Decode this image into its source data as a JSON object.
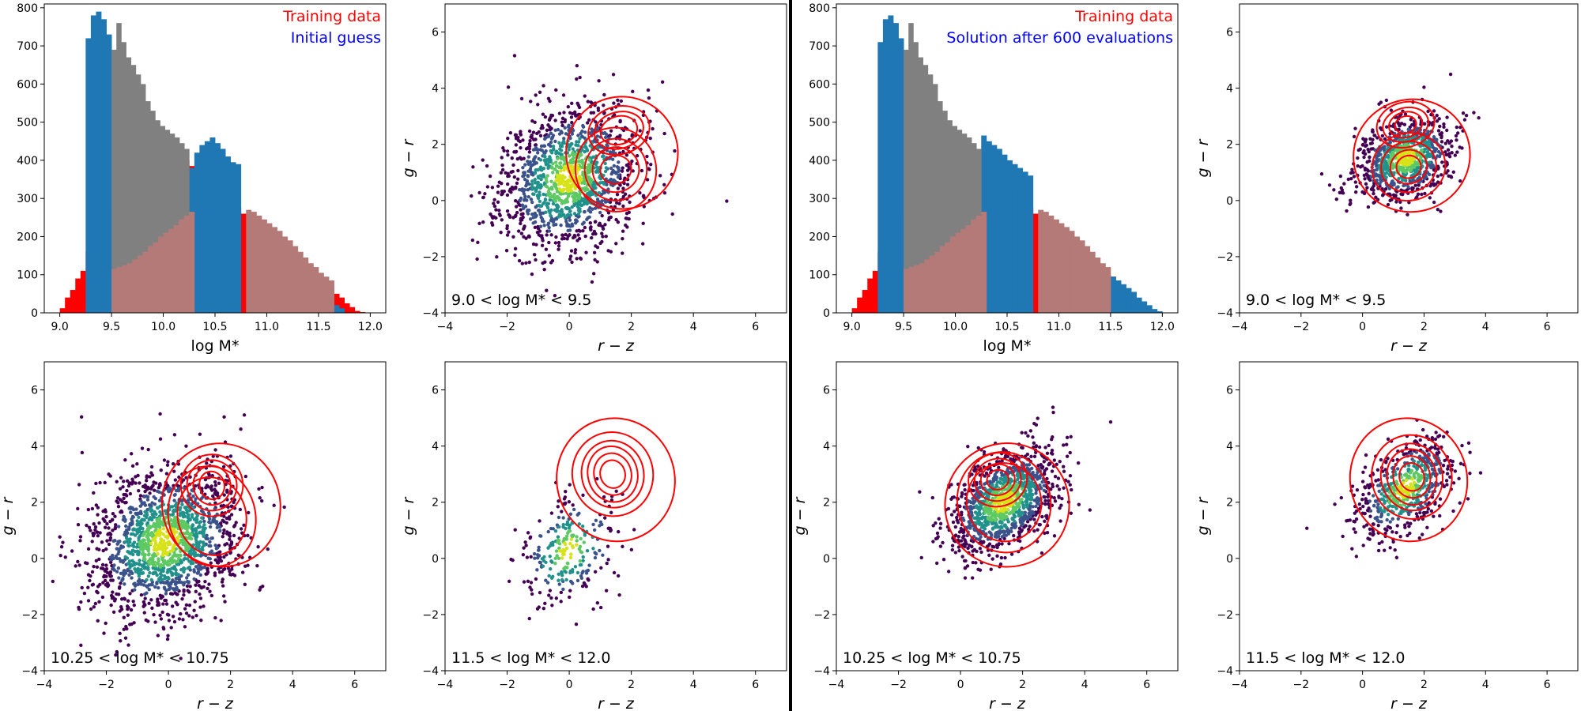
{
  "colors": {
    "training": "#ff0000",
    "initial": "#0000ff",
    "hist_blue": "#1f77b4",
    "hist_gray": "#808080",
    "hist_brown": "#b47a78",
    "viridis_dark": "#440154",
    "viridis_teal": "#21918c",
    "viridis_yellow": "#d8e219"
  },
  "chart_data": [
    {
      "id": "hist-left",
      "type": "bar",
      "xlabel": "log M*",
      "legend": [
        "Training data",
        "Initial guess"
      ],
      "legend_colors": [
        "#ff0000",
        "#0000ff"
      ],
      "legend_placement": "top-right",
      "xlim": [
        8.85,
        12.15
      ],
      "ylim": [
        0,
        810
      ],
      "xticks": [
        "9.0",
        "9.5",
        "10.0",
        "10.5",
        "11.0",
        "11.5",
        "12.0"
      ],
      "yticks": [
        "0",
        "100",
        "200",
        "300",
        "400",
        "500",
        "600",
        "700",
        "800"
      ],
      "gray_bins": {
        "start": 9.5,
        "end": 10.25,
        "values": [
          690,
          760,
          710,
          670,
          650,
          625,
          600,
          555,
          530,
          505,
          490,
          480,
          470,
          460,
          445,
          430
        ]
      },
      "red_bins": {
        "start": 9.0,
        "end": 12.0,
        "values": [
          12,
          40,
          60,
          90,
          110,
          160,
          190,
          230,
          250,
          265,
          275,
          290,
          310,
          300,
          320,
          360,
          380,
          395,
          405,
          400,
          390,
          410,
          430,
          420,
          400,
          385,
          370,
          360,
          355,
          340,
          330,
          320,
          300,
          290,
          275,
          260,
          240,
          230,
          220,
          210,
          195,
          185,
          170,
          160,
          155,
          150,
          135,
          130,
          110,
          100,
          95,
          80,
          65,
          50,
          40,
          25,
          15,
          5,
          2,
          1
        ]
      },
      "blue_bins": [
        {
          "start": 9.25,
          "end": 9.5,
          "values": [
            720,
            780,
            790,
            770,
            730
          ]
        },
        {
          "start": 10.25,
          "end": 10.75,
          "values": [
            380,
            420,
            440,
            450,
            460,
            445,
            430,
            410,
            395,
            390
          ]
        },
        {
          "start": 11.5,
          "end": 11.75,
          "values": [
            40,
            35,
            30,
            20,
            12
          ]
        }
      ],
      "brown_bins": {
        "start": 9.5,
        "end": 12.0,
        "values": [
          115,
          120,
          125,
          130,
          140,
          150,
          160,
          175,
          185,
          200,
          210,
          220,
          230,
          245,
          255,
          265,
          0,
          0,
          0,
          0,
          0,
          0,
          0,
          0,
          0,
          0,
          270,
          265,
          255,
          245,
          235,
          225,
          215,
          200,
          190,
          175,
          160,
          145,
          130,
          120,
          105,
          95,
          85,
          0,
          0,
          0,
          0,
          0,
          0,
          0
        ]
      }
    },
    {
      "id": "hist-right",
      "type": "bar",
      "xlabel": "log M*",
      "legend": [
        "Training data",
        "Solution after 600 evaluations"
      ],
      "legend_colors": [
        "#ff0000",
        "#0000ff"
      ],
      "legend_placement": "top-right",
      "xlim": [
        8.85,
        12.15
      ],
      "ylim": [
        0,
        810
      ],
      "xticks": [
        "9.0",
        "9.5",
        "10.0",
        "10.5",
        "11.0",
        "11.5",
        "12.0"
      ],
      "yticks": [
        "0",
        "100",
        "200",
        "300",
        "400",
        "500",
        "600",
        "700",
        "800"
      ],
      "gray_bins": {
        "start": 9.5,
        "end": 10.25,
        "values": [
          690,
          760,
          710,
          670,
          650,
          625,
          600,
          555,
          530,
          505,
          490,
          480,
          470,
          460,
          445,
          430
        ]
      },
      "red_bins": {
        "start": 9.0,
        "end": 12.0,
        "values": [
          12,
          40,
          60,
          90,
          110,
          160,
          190,
          230,
          250,
          265,
          275,
          290,
          310,
          300,
          320,
          360,
          380,
          395,
          405,
          400,
          390,
          410,
          430,
          420,
          400,
          385,
          370,
          360,
          355,
          340,
          330,
          320,
          300,
          290,
          275,
          260,
          240,
          230,
          220,
          210,
          195,
          185,
          170,
          160,
          155,
          150,
          135,
          130,
          110,
          100,
          95,
          80,
          65,
          50,
          40,
          25,
          15,
          5,
          2,
          1
        ]
      },
      "blue_bins": [
        {
          "start": 9.25,
          "end": 9.5,
          "values": [
            710,
            770,
            780,
            760,
            720
          ]
        },
        {
          "start": 10.25,
          "end": 10.75,
          "values": [
            465,
            450,
            440,
            430,
            415,
            400,
            390,
            380,
            370,
            360
          ]
        },
        {
          "start": 11.5,
          "end": 12.0,
          "values": [
            95,
            85,
            75,
            65,
            55,
            40,
            30,
            20,
            10,
            4
          ]
        }
      ],
      "brown_bins": {
        "start": 9.5,
        "end": 12.0,
        "values": [
          115,
          120,
          125,
          130,
          140,
          150,
          160,
          175,
          185,
          200,
          210,
          220,
          230,
          245,
          255,
          265,
          0,
          0,
          0,
          0,
          0,
          0,
          0,
          0,
          0,
          0,
          270,
          265,
          255,
          245,
          235,
          225,
          215,
          200,
          190,
          175,
          160,
          145,
          130,
          120,
          0,
          0,
          0,
          0,
          0,
          0,
          0,
          0,
          0,
          0
        ]
      }
    },
    {
      "id": "sc-l1",
      "type": "scatter",
      "annotation": "9.0 < log M* < 9.5",
      "xlabel": "r − z",
      "ylabel": "g − r",
      "xlim": [
        -4,
        7
      ],
      "ylim": [
        -4,
        7
      ],
      "xticks": [
        "−4",
        "−2",
        "0",
        "2",
        "4",
        "6"
      ],
      "yticks": [
        "−4",
        "−2",
        "0",
        "2",
        "4",
        "6"
      ],
      "cloud": {
        "cx": 0.0,
        "cy": 0.8,
        "sx": 1.1,
        "sy": 1.3,
        "rho": 0.2,
        "n": 1400,
        "seed": 11
      },
      "contours": [
        {
          "cx": 1.6,
          "cy": 2.5,
          "rx": [
            0.6,
            0.8,
            1.0
          ],
          "ry": [
            0.5,
            0.65,
            0.85
          ]
        },
        {
          "cx": 1.5,
          "cy": 1.1,
          "rx": [
            0.5,
            0.75,
            1.0,
            1.3
          ],
          "ry": [
            0.5,
            0.8,
            1.1,
            1.5
          ]
        },
        {
          "cx": 1.7,
          "cy": 1.7,
          "rx": [
            1.8
          ],
          "ry": [
            2.0
          ]
        }
      ]
    },
    {
      "id": "sc-r1",
      "type": "scatter",
      "annotation": "9.0 < log M* < 9.5",
      "xlabel": "r − z",
      "ylabel": "g − r",
      "xlim": [
        -4,
        7
      ],
      "ylim": [
        -4,
        7
      ],
      "xticks": [
        "−4",
        "−2",
        "0",
        "2",
        "4",
        "6"
      ],
      "yticks": [
        "−4",
        "−2",
        "0",
        "2",
        "4",
        "6"
      ],
      "cloud": {
        "cx": 1.4,
        "cy": 1.5,
        "sx": 0.8,
        "sy": 0.75,
        "rho": 0.3,
        "n": 900,
        "seed": 21
      },
      "contours": [
        {
          "cx": 1.4,
          "cy": 2.7,
          "rx": [
            0.35,
            0.55,
            0.75,
            0.95
          ],
          "ry": [
            0.3,
            0.45,
            0.6,
            0.8
          ]
        },
        {
          "cx": 1.5,
          "cy": 1.2,
          "rx": [
            0.4,
            0.6,
            0.9,
            1.2
          ],
          "ry": [
            0.4,
            0.6,
            0.9,
            1.2
          ]
        },
        {
          "cx": 1.6,
          "cy": 1.6,
          "rx": [
            1.9
          ],
          "ry": [
            2.0
          ]
        }
      ]
    },
    {
      "id": "sc-l2",
      "type": "scatter",
      "annotation": "10.25 < log M* < 10.75",
      "xlabel": "r − z",
      "ylabel": "g − r",
      "xlim": [
        -4,
        7
      ],
      "ylim": [
        -4,
        7
      ],
      "xticks": [
        "−4",
        "−2",
        "0",
        "2",
        "4",
        "6"
      ],
      "yticks": [
        "−4",
        "−2",
        "0",
        "2",
        "4",
        "6"
      ],
      "cloud": {
        "cx": -0.1,
        "cy": 0.6,
        "sx": 1.2,
        "sy": 1.3,
        "rho": 0.2,
        "n": 1600,
        "seed": 31
      },
      "contours": [
        {
          "cx": 1.4,
          "cy": 2.6,
          "rx": [
            0.4,
            0.6,
            0.8,
            1.0
          ],
          "ry": [
            0.5,
            0.7,
            0.9,
            1.1
          ]
        },
        {
          "cx": 1.4,
          "cy": 1.5,
          "rx": [
            1.1,
            1.4
          ],
          "ry": [
            1.4,
            1.8
          ]
        },
        {
          "cx": 1.7,
          "cy": 1.9,
          "rx": [
            1.9
          ],
          "ry": [
            2.2
          ]
        }
      ]
    },
    {
      "id": "sc-l3",
      "type": "scatter",
      "annotation": "11.5 < log M* < 12.0",
      "xlabel": "r − z",
      "ylabel": "g − r",
      "xlim": [
        -4,
        7
      ],
      "ylim": [
        -4,
        7
      ],
      "xticks": [
        "−4",
        "−2",
        "0",
        "2",
        "4",
        "6"
      ],
      "yticks": [
        "−4",
        "−2",
        "0",
        "2",
        "4",
        "6"
      ],
      "cloud": {
        "cx": 0.0,
        "cy": 0.3,
        "sx": 0.8,
        "sy": 1.0,
        "rho": 0.3,
        "n": 260,
        "seed": 41
      },
      "contours": [
        {
          "cx": 1.4,
          "cy": 3.0,
          "rx": [
            0.4,
            0.6,
            0.8,
            1.0,
            1.3
          ],
          "ry": [
            0.5,
            0.75,
            1.0,
            1.2,
            1.5
          ]
        },
        {
          "cx": 1.5,
          "cy": 2.8,
          "rx": [
            1.9
          ],
          "ry": [
            2.2
          ]
        }
      ]
    },
    {
      "id": "sc-r2",
      "type": "scatter",
      "annotation": "10.25 < log M* < 10.75",
      "xlabel": "r − z",
      "ylabel": "g − r",
      "xlim": [
        -4,
        7
      ],
      "ylim": [
        -4,
        7
      ],
      "xticks": [
        "−4",
        "−2",
        "0",
        "2",
        "4",
        "6"
      ],
      "yticks": [
        "−4",
        "−2",
        "0",
        "2",
        "4",
        "6"
      ],
      "cloud": {
        "cx": 1.4,
        "cy": 2.0,
        "sx": 0.9,
        "sy": 0.95,
        "rho": 0.45,
        "n": 1200,
        "seed": 51
      },
      "contours": [
        {
          "cx": 1.2,
          "cy": 2.8,
          "rx": [
            0.35,
            0.55,
            0.75,
            0.95
          ],
          "ry": [
            0.35,
            0.55,
            0.75,
            0.95
          ]
        },
        {
          "cx": 1.4,
          "cy": 2.0,
          "rx": [
            1.2,
            1.5
          ],
          "ry": [
            1.4,
            1.8
          ]
        },
        {
          "cx": 1.5,
          "cy": 1.9,
          "rx": [
            2.0
          ],
          "ry": [
            2.2
          ]
        }
      ]
    },
    {
      "id": "sc-r3",
      "type": "scatter",
      "annotation": "11.5 < log M* < 12.0",
      "xlabel": "r − z",
      "ylabel": "g − r",
      "xlim": [
        -4,
        7
      ],
      "ylim": [
        -4,
        7
      ],
      "xticks": [
        "−4",
        "−2",
        "0",
        "2",
        "4",
        "6"
      ],
      "yticks": [
        "−4",
        "−2",
        "0",
        "2",
        "4",
        "6"
      ],
      "cloud": {
        "cx": 1.4,
        "cy": 2.5,
        "sx": 0.8,
        "sy": 0.9,
        "rho": 0.5,
        "n": 600,
        "seed": 61
      },
      "contours": [
        {
          "cx": 1.6,
          "cy": 2.9,
          "rx": [
            0.4,
            0.6,
            0.8,
            1.0,
            1.3
          ],
          "ry": [
            0.5,
            0.75,
            1.0,
            1.2,
            1.5
          ]
        },
        {
          "cx": 1.5,
          "cy": 2.8,
          "rx": [
            1.9
          ],
          "ry": [
            2.2
          ]
        }
      ]
    }
  ]
}
